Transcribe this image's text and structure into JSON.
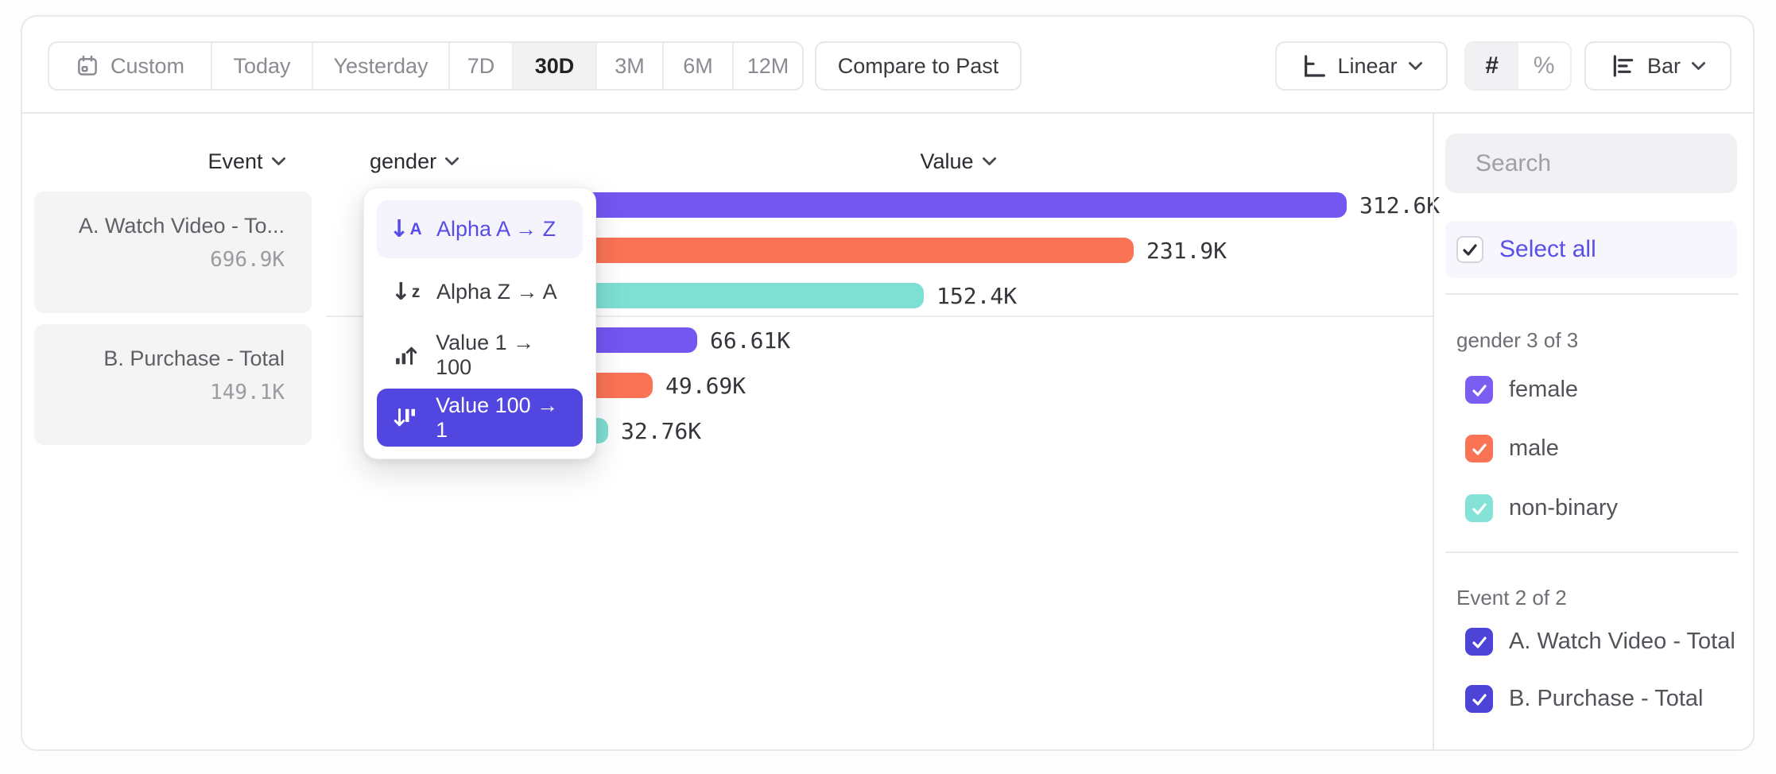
{
  "toolbar": {
    "ranges": [
      {
        "label": "Custom",
        "selected": false
      },
      {
        "label": "Today",
        "selected": false
      },
      {
        "label": "Yesterday",
        "selected": false
      },
      {
        "label": "7D",
        "selected": false
      },
      {
        "label": "30D",
        "selected": true
      },
      {
        "label": "3M",
        "selected": false
      },
      {
        "label": "6M",
        "selected": false
      },
      {
        "label": "12M",
        "selected": false
      }
    ],
    "compare_label": "Compare to Past",
    "scale_label": "Linear",
    "number_symbol": "#",
    "percent_symbol": "%",
    "chart_type_label": "Bar"
  },
  "columns": {
    "event": "Event",
    "breakdown": "gender",
    "value": "Value"
  },
  "events": [
    {
      "name": "A. Watch Video - To...",
      "total": "696.9K"
    },
    {
      "name": "B. Purchase - Total",
      "total": "149.1K"
    }
  ],
  "sort_menu": {
    "items": [
      {
        "label": "Alpha A → Z",
        "icon": "sort-alpha-asc",
        "state": "hover"
      },
      {
        "label": "Alpha Z → A",
        "icon": "sort-alpha-desc",
        "state": "normal"
      },
      {
        "label": "Value 1 → 100",
        "icon": "sort-value-asc",
        "state": "normal"
      },
      {
        "label": "Value 100 → 1",
        "icon": "sort-value-desc",
        "state": "selected"
      }
    ]
  },
  "chart_data": {
    "type": "bar",
    "orientation": "horizontal",
    "sort": "Value 100 → 1",
    "xlim_k": [
      0,
      340
    ],
    "groups": [
      {
        "event": "A. Watch Video - Total",
        "bars": [
          {
            "category": "female",
            "value_k": 312.6,
            "label": "312.6K",
            "color": "#7456F1"
          },
          {
            "category": "male",
            "value_k": 231.9,
            "label": "231.9K",
            "color": "#FB7355"
          },
          {
            "category": "non-binary",
            "value_k": 152.4,
            "label": "152.4K",
            "color": "#7EDFD3"
          }
        ]
      },
      {
        "event": "B. Purchase - Total",
        "bars": [
          {
            "category": "female",
            "value_k": 66.61,
            "label": "66.61K",
            "color": "#7456F1"
          },
          {
            "category": "male",
            "value_k": 49.69,
            "label": "49.69K",
            "color": "#FB7355"
          },
          {
            "category": "non-binary",
            "value_k": 32.76,
            "label": "32.76K",
            "color": "#7EDFD3"
          }
        ]
      }
    ]
  },
  "sidebar": {
    "search_placeholder": "Search",
    "select_all_label": "Select all",
    "sections": [
      {
        "title": "gender 3 of 3",
        "items": [
          {
            "label": "female",
            "checked": true,
            "color": "#7B5DF2"
          },
          {
            "label": "male",
            "checked": true,
            "color": "#FB7355"
          },
          {
            "label": "non-binary",
            "checked": true,
            "color": "#85E2D6"
          }
        ]
      },
      {
        "title": "Event 2 of 2",
        "items": [
          {
            "label": "A. Watch Video - Total",
            "checked": true,
            "color": "#4D44D7"
          },
          {
            "label": "B. Purchase - Total",
            "checked": true,
            "color": "#4D44D7"
          }
        ]
      }
    ]
  },
  "colors": {
    "accent_purple": "#5246E0",
    "link_purple": "#5A50E8",
    "bar_purple": "#7456F1",
    "bar_orange": "#FB7355",
    "bar_teal": "#7EDFD3",
    "hover_lavender": "#F5F4FD",
    "selected_toolbar_bg": "#F2F2F3"
  }
}
